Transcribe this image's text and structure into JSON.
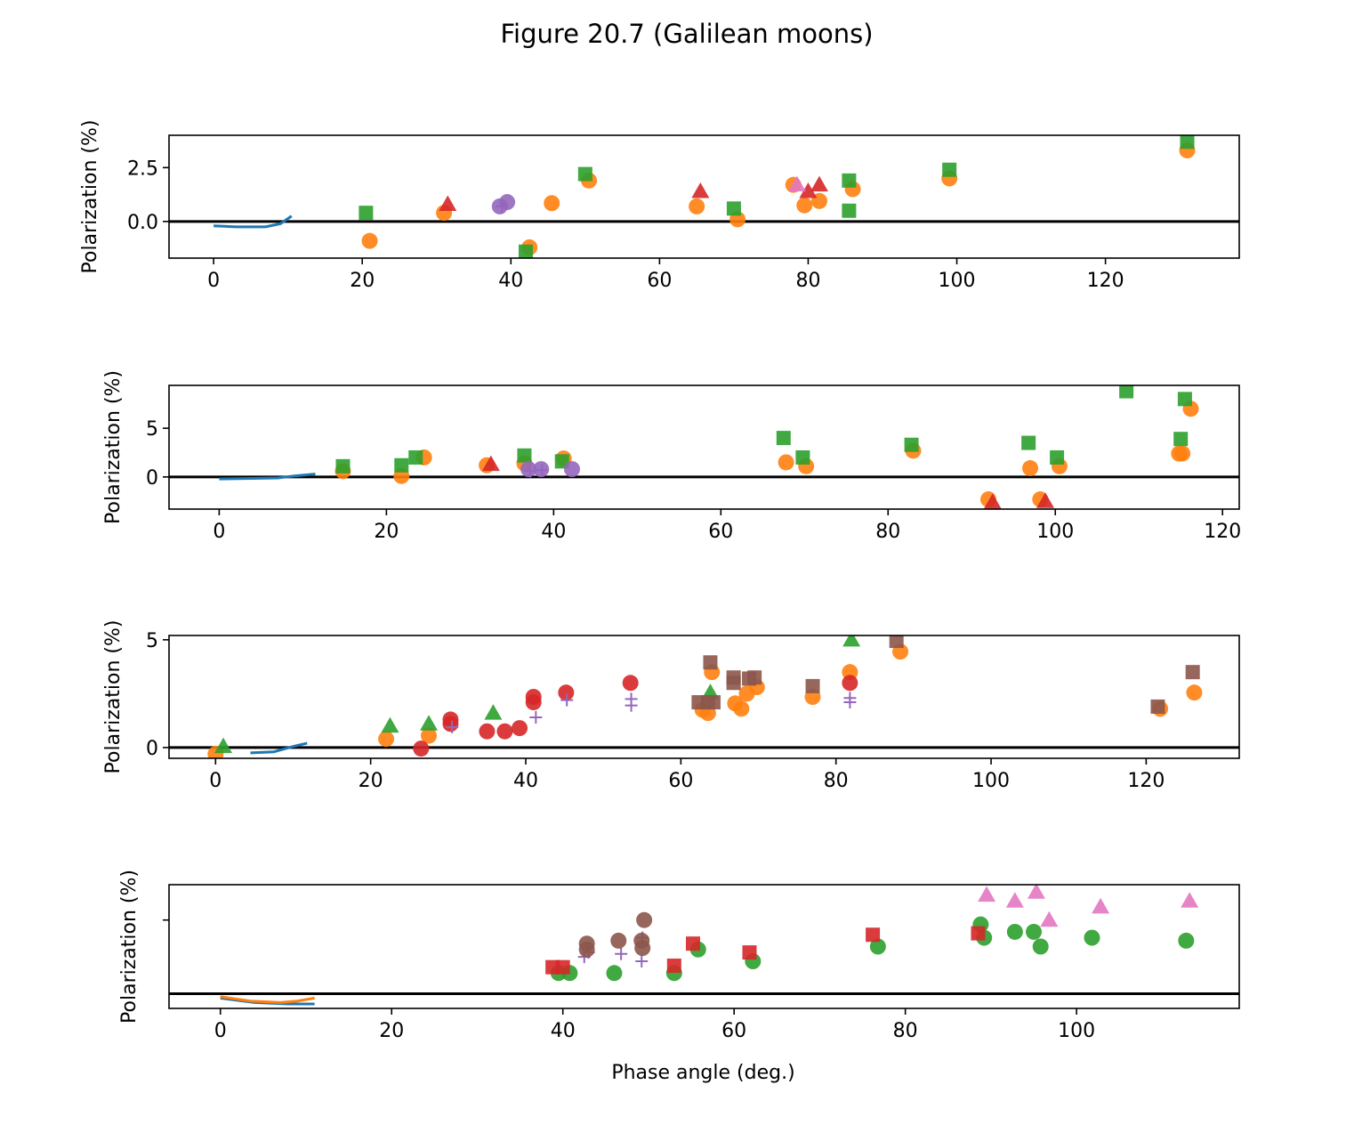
{
  "title": "Figure 20.7 (Galilean moons)",
  "colors": {
    "blue": "#1f77b4",
    "orange": "#ff7f0e",
    "green": "#2ca02c",
    "red": "#d62728",
    "purple": "#9467bd",
    "brown": "#8c564b",
    "pink": "#e377c2"
  },
  "chart_data": [
    {
      "type": "scatter",
      "ylabel": "Polarization (%)",
      "xlabel": "",
      "xlim": [
        -6,
        138
      ],
      "ylim": [
        -1.7,
        4.0
      ],
      "xticks": [
        0,
        20,
        40,
        60,
        80,
        100,
        120
      ],
      "yticks": [
        0.0,
        2.5
      ],
      "ytick_labels": [
        "0.0",
        "2.5"
      ],
      "zero_line": true,
      "series": [
        {
          "color": "blue",
          "marker": "line",
          "points": [
            [
              0,
              -0.2
            ],
            [
              3,
              -0.25
            ],
            [
              7,
              -0.25
            ],
            [
              9,
              -0.1
            ],
            [
              10.5,
              0.25
            ]
          ]
        },
        {
          "color": "orange",
          "marker": "circle",
          "points": [
            [
              21,
              -0.9
            ],
            [
              31,
              0.4
            ],
            [
              42.5,
              -1.2
            ],
            [
              45.5,
              0.85
            ],
            [
              50.5,
              1.9
            ],
            [
              65,
              0.7
            ],
            [
              70.5,
              0.1
            ],
            [
              78,
              1.7
            ],
            [
              79.5,
              0.75
            ],
            [
              81.5,
              0.95
            ],
            [
              86,
              1.5
            ],
            [
              99,
              2.0
            ],
            [
              131,
              3.3
            ]
          ]
        },
        {
          "color": "green",
          "marker": "square",
          "points": [
            [
              20.5,
              0.4
            ],
            [
              42,
              -1.4
            ],
            [
              50,
              2.2
            ],
            [
              70,
              0.6
            ],
            [
              85.5,
              1.9
            ],
            [
              85.5,
              0.5
            ],
            [
              99,
              2.4
            ],
            [
              131,
              3.7
            ]
          ]
        },
        {
          "color": "red",
          "marker": "triangle",
          "points": [
            [
              31.5,
              0.8
            ],
            [
              65.5,
              1.4
            ],
            [
              80,
              1.4
            ],
            [
              81.5,
              1.7
            ]
          ]
        },
        {
          "color": "purple",
          "marker": "circle",
          "points": [
            [
              38.5,
              0.7
            ],
            [
              39.5,
              0.9
            ]
          ]
        },
        {
          "color": "purple",
          "marker": "plus",
          "points": [
            [
              38.8,
              0.7
            ]
          ]
        },
        {
          "color": "pink",
          "marker": "triangle",
          "points": [
            [
              78.5,
              1.7
            ]
          ]
        }
      ]
    },
    {
      "type": "scatter",
      "ylabel": "Polarization (%)",
      "xlabel": "",
      "xlim": [
        -6,
        122
      ],
      "ylim": [
        -3.3,
        9.4
      ],
      "xticks": [
        0,
        20,
        40,
        60,
        80,
        100,
        120
      ],
      "yticks": [
        0,
        5
      ],
      "ytick_labels": [
        "0",
        "5"
      ],
      "zero_line": true,
      "series": [
        {
          "color": "blue",
          "marker": "line",
          "points": [
            [
              0,
              -0.2
            ],
            [
              4,
              -0.15
            ],
            [
              7,
              -0.1
            ],
            [
              9,
              0.1
            ],
            [
              11.5,
              0.3
            ]
          ]
        },
        {
          "color": "orange",
          "marker": "circle",
          "points": [
            [
              14.8,
              0.6
            ],
            [
              21.8,
              0.1
            ],
            [
              24.5,
              2.0
            ],
            [
              32,
              1.2
            ],
            [
              36.5,
              1.4
            ],
            [
              41.2,
              1.9
            ],
            [
              67.8,
              1.5
            ],
            [
              70.2,
              1.1
            ],
            [
              83,
              2.7
            ],
            [
              92,
              -2.3
            ],
            [
              97,
              0.9
            ],
            [
              98.2,
              -2.3
            ],
            [
              100.5,
              1.1
            ],
            [
              114.8,
              2.4
            ],
            [
              115.2,
              2.4
            ],
            [
              116.2,
              7.0
            ]
          ]
        },
        {
          "color": "green",
          "marker": "square",
          "points": [
            [
              14.8,
              1.1
            ],
            [
              21.8,
              1.2
            ],
            [
              23.5,
              2.0
            ],
            [
              36.5,
              2.2
            ],
            [
              41,
              1.6
            ],
            [
              67.5,
              4.0
            ],
            [
              69.8,
              2.0
            ],
            [
              82.8,
              3.3
            ],
            [
              96.8,
              3.5
            ],
            [
              100.2,
              2.0
            ],
            [
              108.5,
              8.8
            ],
            [
              115,
              3.9
            ],
            [
              115.5,
              8.0
            ]
          ]
        },
        {
          "color": "red",
          "marker": "triangle",
          "points": [
            [
              32.5,
              1.3
            ],
            [
              92.5,
              -2.6
            ],
            [
              98.8,
              -2.5
            ]
          ]
        },
        {
          "color": "purple",
          "marker": "circle",
          "points": [
            [
              37,
              0.8
            ],
            [
              38.5,
              0.8
            ],
            [
              42.2,
              0.8
            ]
          ]
        },
        {
          "color": "purple",
          "marker": "plus",
          "points": [
            [
              37.2,
              0.6
            ],
            [
              38.6,
              0.7
            ]
          ]
        }
      ]
    },
    {
      "type": "scatter",
      "ylabel": "Polarization (%)",
      "xlabel": "",
      "xlim": [
        -6,
        132
      ],
      "ylim": [
        -0.5,
        5.2
      ],
      "xticks": [
        0,
        20,
        40,
        60,
        80,
        100,
        120
      ],
      "yticks": [
        0,
        5
      ],
      "ytick_labels": [
        "0",
        "5"
      ],
      "zero_line": true,
      "series": [
        {
          "color": "blue",
          "marker": "line",
          "points": [
            [
              4.5,
              -0.25
            ],
            [
              7.5,
              -0.2
            ],
            [
              10,
              0.05
            ],
            [
              11.8,
              0.2
            ]
          ]
        },
        {
          "color": "orange",
          "marker": "circle",
          "points": [
            [
              0,
              -0.3
            ],
            [
              22,
              0.4
            ],
            [
              27.5,
              0.55
            ],
            [
              62.8,
              1.75
            ],
            [
              63.5,
              1.6
            ],
            [
              64,
              3.5
            ],
            [
              67,
              2.05
            ],
            [
              67.8,
              1.8
            ],
            [
              68.5,
              2.5
            ],
            [
              69.8,
              2.8
            ],
            [
              77,
              2.35
            ],
            [
              81.8,
              3.5
            ],
            [
              88.3,
              4.45
            ],
            [
              121.8,
              1.8
            ],
            [
              126.2,
              2.55
            ]
          ]
        },
        {
          "color": "green",
          "marker": "triangle",
          "points": [
            [
              1,
              0.05
            ],
            [
              22.5,
              1.0
            ],
            [
              27.5,
              1.1
            ],
            [
              35.8,
              1.6
            ],
            [
              63.8,
              2.55
            ],
            [
              82,
              5.0
            ]
          ]
        },
        {
          "color": "red",
          "marker": "circle",
          "points": [
            [
              26.5,
              -0.05
            ],
            [
              30.3,
              1.3
            ],
            [
              30.3,
              1.1
            ],
            [
              35,
              0.75
            ],
            [
              37.3,
              0.75
            ],
            [
              39.2,
              0.9
            ],
            [
              41,
              2.35
            ],
            [
              41,
              2.1
            ],
            [
              45.2,
              2.55
            ],
            [
              53.5,
              3.0
            ],
            [
              81.8,
              3.0
            ]
          ]
        },
        {
          "color": "purple",
          "marker": "plus",
          "points": [
            [
              30.5,
              0.95
            ],
            [
              41.3,
              1.4
            ],
            [
              45.3,
              2.2
            ],
            [
              53.6,
              2.25
            ],
            [
              53.6,
              1.95
            ],
            [
              81.8,
              2.3
            ],
            [
              81.8,
              2.1
            ]
          ]
        },
        {
          "color": "brown",
          "marker": "square",
          "points": [
            [
              62.3,
              2.1
            ],
            [
              63.5,
              2.1
            ],
            [
              64.2,
              2.1
            ],
            [
              63.8,
              3.95
            ],
            [
              66.8,
              3.25
            ],
            [
              66.8,
              3.0
            ],
            [
              68.8,
              3.2
            ],
            [
              69.5,
              3.25
            ],
            [
              77,
              2.85
            ],
            [
              87.8,
              4.95
            ],
            [
              121.5,
              1.9
            ],
            [
              126,
              3.5
            ]
          ]
        }
      ]
    },
    {
      "type": "scatter",
      "ylabel": "Polarization (%)",
      "xlabel": "Phase angle (deg.)",
      "xlim": [
        -6,
        119
      ],
      "ylim": [
        -0.5,
        3.7
      ],
      "xticks": [
        0,
        20,
        40,
        60,
        80,
        100
      ],
      "yticks": [
        2.5
      ],
      "ytick_labels": [
        ""
      ],
      "zero_line": true,
      "series": [
        {
          "color": "blue",
          "marker": "line",
          "points": [
            [
              0,
              -0.15
            ],
            [
              4,
              -0.3
            ],
            [
              8,
              -0.35
            ],
            [
              11,
              -0.35
            ]
          ]
        },
        {
          "color": "orange",
          "marker": "line",
          "points": [
            [
              0,
              -0.1
            ],
            [
              3.5,
              -0.25
            ],
            [
              7,
              -0.3
            ],
            [
              9,
              -0.25
            ],
            [
              11,
              -0.15
            ]
          ]
        },
        {
          "color": "green",
          "marker": "circle",
          "points": [
            [
              39.5,
              0.7
            ],
            [
              40.8,
              0.7
            ],
            [
              46,
              0.7
            ],
            [
              53,
              0.7
            ],
            [
              55.8,
              1.5
            ],
            [
              62.2,
              1.1
            ],
            [
              76.8,
              1.6
            ],
            [
              88.8,
              2.35
            ],
            [
              89.2,
              1.9
            ],
            [
              92.8,
              2.1
            ],
            [
              95,
              2.1
            ],
            [
              95.8,
              1.6
            ],
            [
              101.8,
              1.9
            ],
            [
              112.8,
              1.8
            ]
          ]
        },
        {
          "color": "red",
          "marker": "square",
          "points": [
            [
              38.8,
              0.9
            ],
            [
              40,
              0.9
            ],
            [
              53,
              0.95
            ],
            [
              55.2,
              1.7
            ],
            [
              61.8,
              1.4
            ],
            [
              76.2,
              2.0
            ],
            [
              88.5,
              2.05
            ]
          ]
        },
        {
          "color": "purple",
          "marker": "plus",
          "points": [
            [
              42.5,
              1.25
            ],
            [
              43,
              1.4
            ],
            [
              46.8,
              1.35
            ],
            [
              49.2,
              1.1
            ],
            [
              49.3,
              1.9
            ]
          ]
        },
        {
          "color": "brown",
          "marker": "circle",
          "points": [
            [
              42.8,
              1.7
            ],
            [
              42.8,
              1.5
            ],
            [
              46.5,
              1.8
            ],
            [
              49.2,
              1.8
            ],
            [
              49.3,
              1.55
            ],
            [
              49.5,
              2.5
            ]
          ]
        },
        {
          "color": "pink",
          "marker": "triangle",
          "points": [
            [
              89.5,
              3.35
            ],
            [
              92.8,
              3.15
            ],
            [
              95.3,
              3.45
            ],
            [
              96.8,
              2.5
            ],
            [
              102.8,
              2.95
            ],
            [
              113.2,
              3.15
            ]
          ]
        }
      ]
    }
  ]
}
